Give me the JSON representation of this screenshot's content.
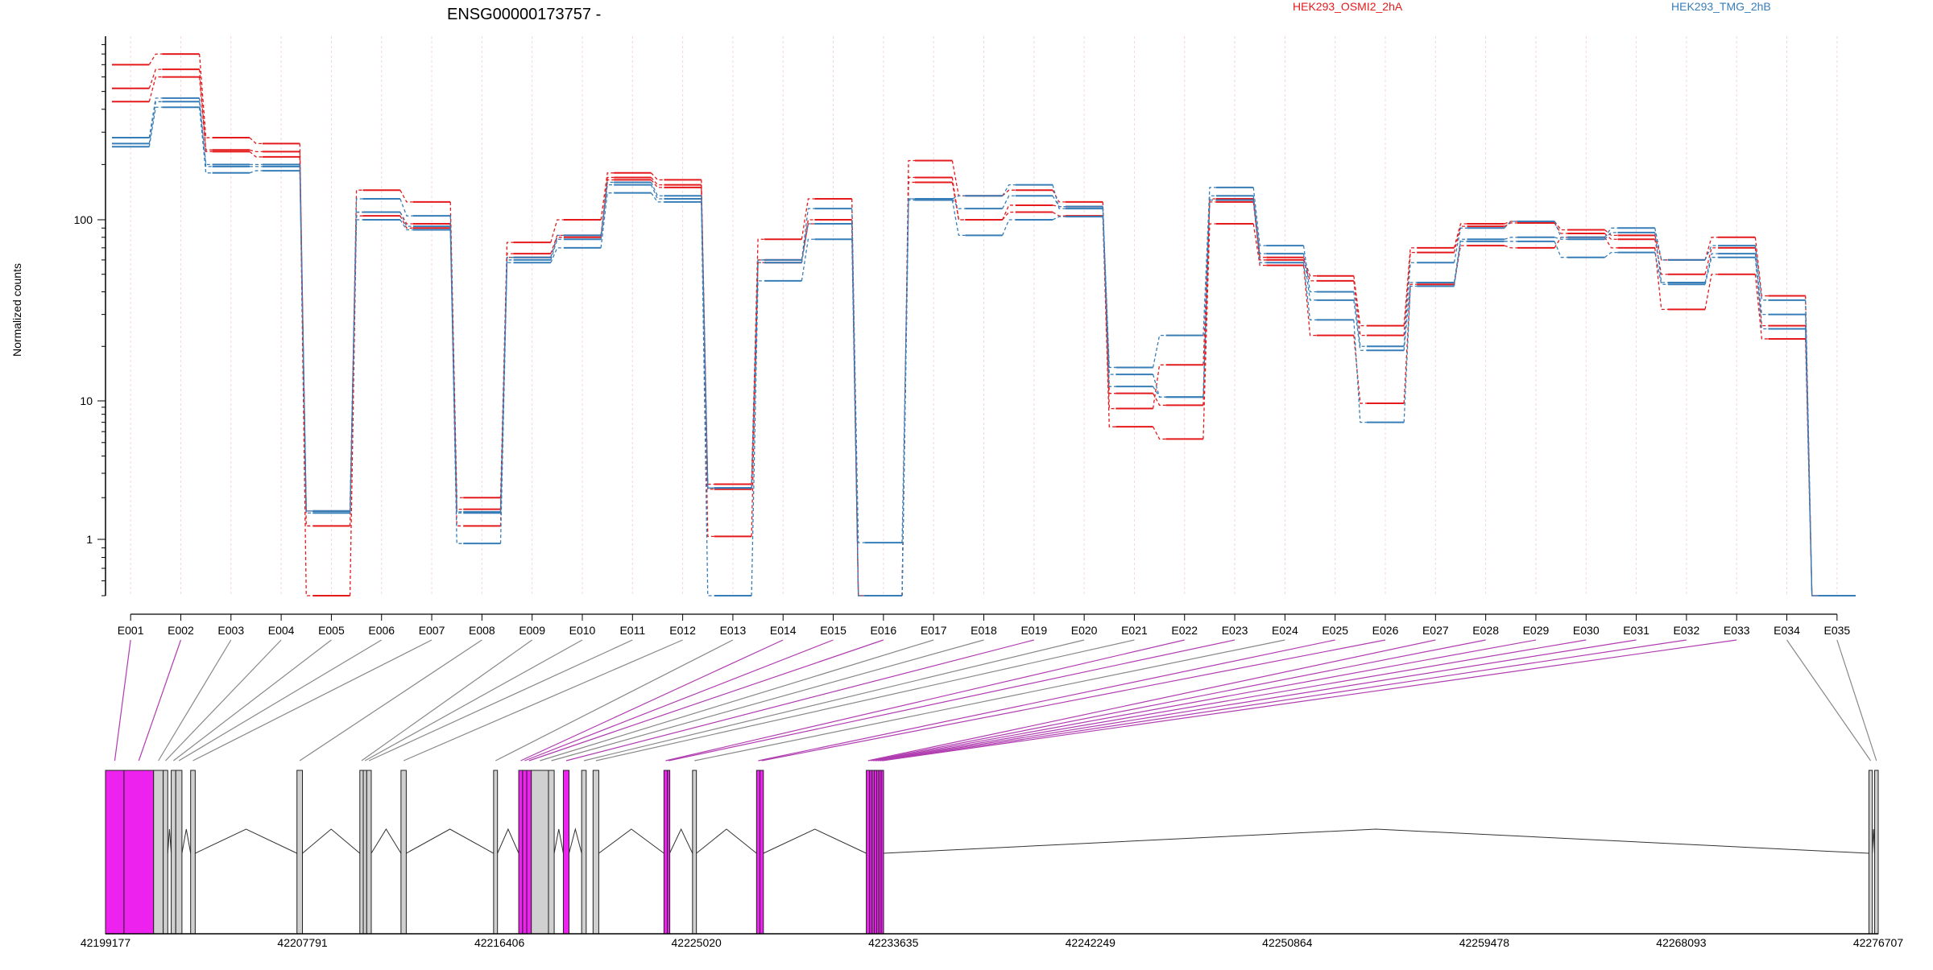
{
  "chart_data": {
    "type": "line",
    "title": "ENSG00000173757 -",
    "ylabel": "Normalized counts",
    "yscale": "log",
    "ylim": [
      0.5,
      1000
    ],
    "yticks": [
      "1",
      "10",
      "100"
    ],
    "grid": "vertical dashed per exon",
    "legend_placement": "top-right",
    "colors": {
      "OSMI2": "#e41a1c",
      "TMG": "#377eb8",
      "highlight_exon": "#ee22ee",
      "exon": "#d0d0d0"
    },
    "categories": [
      "E001",
      "E002",
      "E003",
      "E004",
      "E005",
      "E006",
      "E007",
      "E008",
      "E009",
      "E010",
      "E011",
      "E012",
      "E013",
      "E014",
      "E015",
      "E016",
      "E017",
      "E018",
      "E019",
      "E020",
      "E021",
      "E022",
      "E023",
      "E024",
      "E025",
      "E026",
      "E027",
      "E028",
      "E029",
      "E030",
      "E031",
      "E032",
      "E033",
      "E034",
      "E035"
    ],
    "groups": [
      {
        "name": "HEK293_OSMI2_2hA",
        "color": "#e41a1c"
      },
      {
        "name": "HEK293_TMG_2hB",
        "color": "#377eb8"
      }
    ],
    "series": [
      {
        "group": "OSMI2",
        "values": [
          700,
          800,
          280,
          260,
          1.25,
          145,
          125,
          2,
          75,
          100,
          180,
          165,
          2.5,
          78,
          130,
          0.5,
          210,
          135,
          145,
          125,
          8.8,
          15.8,
          130,
          62,
          49,
          26,
          70,
          95,
          98,
          88,
          82,
          60,
          80,
          38,
          0.5
        ]
      },
      {
        "group": "OSMI2",
        "values": [
          520,
          660,
          240,
          235,
          1.6,
          110,
          95,
          1.65,
          65,
          82,
          170,
          155,
          1.05,
          60,
          95,
          0.5,
          170,
          100,
          120,
          118,
          11,
          9.3,
          125,
          60,
          46,
          23,
          66,
          92,
          96,
          84,
          78,
          50,
          70,
          26,
          0.5
        ]
      },
      {
        "group": "OSMI2",
        "values": [
          440,
          600,
          235,
          220,
          0.5,
          105,
          90,
          1.25,
          62,
          80,
          165,
          150,
          2.3,
          58,
          100,
          0.5,
          160,
          100,
          110,
          105,
          6.5,
          5.3,
          95,
          56,
          23,
          9.6,
          44,
          72,
          70,
          80,
          70,
          32,
          50,
          22,
          0.5
        ]
      },
      {
        "group": "TMG",
        "values": [
          280,
          460,
          200,
          200,
          1.6,
          130,
          105,
          1.55,
          62,
          82,
          160,
          135,
          2.35,
          60,
          115,
          0.96,
          130,
          135,
          155,
          115,
          15.3,
          23,
          150,
          72,
          40,
          20,
          58,
          90,
          98,
          80,
          90,
          60,
          72,
          36,
          0.5
        ]
      },
      {
        "group": "TMG",
        "values": [
          260,
          440,
          195,
          195,
          1.6,
          110,
          92,
          1.58,
          60,
          78,
          155,
          130,
          2.35,
          58,
          95,
          0.5,
          130,
          115,
          135,
          118,
          14,
          10.5,
          135,
          65,
          36,
          19,
          45,
          78,
          80,
          78,
          85,
          45,
          65,
          30,
          0.5
        ]
      },
      {
        "group": "TMG",
        "values": [
          250,
          410,
          180,
          185,
          1.55,
          100,
          88,
          0.95,
          58,
          70,
          140,
          125,
          0.5,
          46,
          78,
          0.5,
          128,
          82,
          100,
          104,
          12,
          10.5,
          128,
          58,
          28,
          7,
          43,
          76,
          76,
          62,
          66,
          44,
          62,
          25,
          0.5
        ]
      }
    ],
    "x_genomic_labels": [
      "42199177",
      "42207791",
      "42216406",
      "42225020",
      "42233635",
      "42242249",
      "42250864",
      "42259478",
      "42268093",
      "42276707"
    ],
    "x_genomic_range": [
      42199177,
      42276707
    ],
    "exons": [
      {
        "id": "E001",
        "start": 42199177,
        "end": 42199985,
        "highlight": true
      },
      {
        "id": "E002",
        "start": 42199985,
        "end": 42201280,
        "highlight": true
      },
      {
        "id": "E003",
        "start": 42201280,
        "end": 42201700,
        "highlight": false
      },
      {
        "id": "E004",
        "start": 42201700,
        "end": 42201900,
        "highlight": false
      },
      {
        "id": "E005",
        "start": 42202050,
        "end": 42202250,
        "highlight": false
      },
      {
        "id": "E006",
        "start": 42202250,
        "end": 42202520,
        "highlight": false
      },
      {
        "id": "E007",
        "start": 42202900,
        "end": 42203100,
        "highlight": false
      },
      {
        "id": "E008",
        "start": 42207550,
        "end": 42207790,
        "highlight": false
      },
      {
        "id": "E009",
        "start": 42210300,
        "end": 42210450,
        "highlight": false
      },
      {
        "id": "E010",
        "start": 42210450,
        "end": 42210600,
        "highlight": false
      },
      {
        "id": "E011",
        "start": 42210600,
        "end": 42210800,
        "highlight": false
      },
      {
        "id": "E012",
        "start": 42212100,
        "end": 42212330,
        "highlight": false
      },
      {
        "id": "E013",
        "start": 42216150,
        "end": 42216320,
        "highlight": false
      },
      {
        "id": "E014",
        "start": 42217250,
        "end": 42217420,
        "highlight": true
      },
      {
        "id": "E015",
        "start": 42217420,
        "end": 42217600,
        "highlight": true
      },
      {
        "id": "E016",
        "start": 42217600,
        "end": 42217800,
        "highlight": true
      },
      {
        "id": "E017",
        "start": 42217800,
        "end": 42218550,
        "highlight": false
      },
      {
        "id": "E018",
        "start": 42218550,
        "end": 42218800,
        "highlight": false
      },
      {
        "id": "E019",
        "start": 42219200,
        "end": 42219450,
        "highlight": true
      },
      {
        "id": "E020",
        "start": 42220000,
        "end": 42220200,
        "highlight": false
      },
      {
        "id": "E021",
        "start": 42220500,
        "end": 42220750,
        "highlight": false
      },
      {
        "id": "E022",
        "start": 42223600,
        "end": 42223750,
        "highlight": true
      },
      {
        "id": "E023",
        "start": 42223750,
        "end": 42223850,
        "highlight": true
      },
      {
        "id": "E024",
        "start": 42224850,
        "end": 42225020,
        "highlight": false
      },
      {
        "id": "E025",
        "start": 42227650,
        "end": 42227800,
        "highlight": true
      },
      {
        "id": "E026",
        "start": 42227800,
        "end": 42227950,
        "highlight": true
      },
      {
        "id": "E027",
        "start": 42232450,
        "end": 42232600,
        "highlight": true
      },
      {
        "id": "E028",
        "start": 42232600,
        "end": 42232700,
        "highlight": true
      },
      {
        "id": "E029",
        "start": 42232700,
        "end": 42232800,
        "highlight": true
      },
      {
        "id": "E030",
        "start": 42232800,
        "end": 42232900,
        "highlight": true
      },
      {
        "id": "E031",
        "start": 42232900,
        "end": 42233000,
        "highlight": true
      },
      {
        "id": "E032",
        "start": 42233000,
        "end": 42233100,
        "highlight": true
      },
      {
        "id": "E033",
        "start": 42233100,
        "end": 42233190,
        "highlight": true
      },
      {
        "id": "E034",
        "start": 42276300,
        "end": 42276450,
        "highlight": false
      },
      {
        "id": "E035",
        "start": 42276550,
        "end": 42276707,
        "highlight": false
      }
    ],
    "junctions": [
      [
        42201900,
        42202050
      ],
      [
        42202520,
        42202900
      ],
      [
        42203100,
        42207550
      ],
      [
        42207790,
        42210300
      ],
      [
        42210800,
        42212100
      ],
      [
        42212330,
        42216150
      ],
      [
        42216320,
        42217250
      ],
      [
        42218800,
        42219200
      ],
      [
        42219450,
        42220000
      ],
      [
        42220750,
        42223600
      ],
      [
        42223850,
        42224850
      ],
      [
        42225020,
        42227650
      ],
      [
        42227950,
        42232450
      ],
      [
        42233190,
        42276300
      ],
      [
        42276450,
        42276550
      ]
    ]
  }
}
